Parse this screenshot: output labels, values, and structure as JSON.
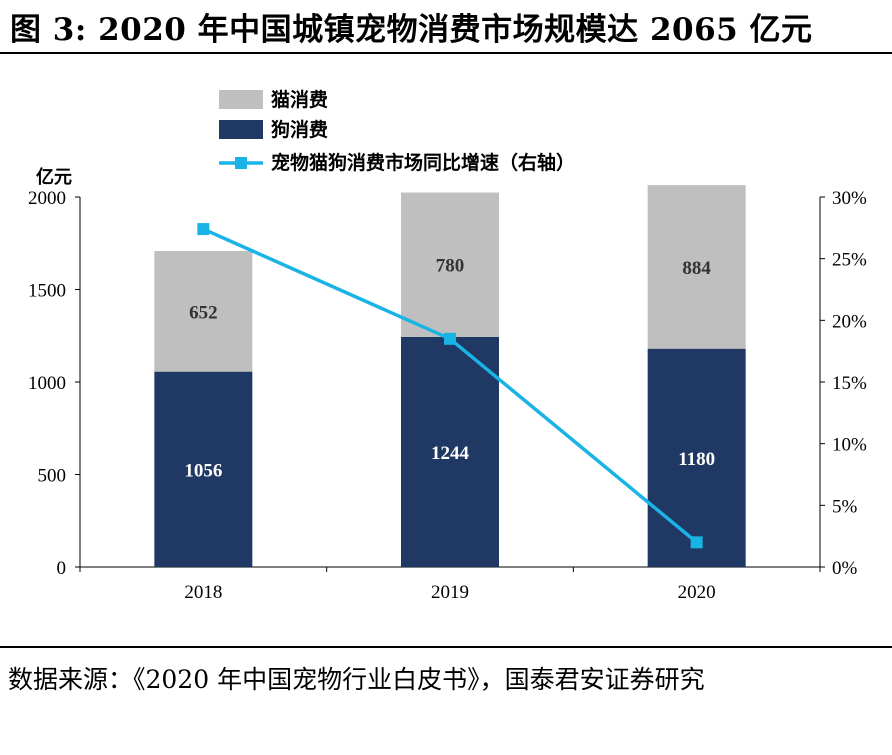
{
  "header": {
    "title": "图 3: 2020 年中国城镇宠物消费市场规模达 2065 亿元"
  },
  "footer": {
    "source": "数据来源：《2020 年中国宠物行业白皮书》，国泰君安证券研究"
  },
  "chart_data": {
    "type": "bar",
    "stacked": true,
    "categories": [
      "2018",
      "2019",
      "2020"
    ],
    "series": [
      {
        "name": "狗消费",
        "kind": "bar",
        "axis": "left",
        "color": "#1f3864",
        "values": [
          1056,
          1244,
          1180
        ]
      },
      {
        "name": "猫消费",
        "kind": "bar",
        "axis": "left",
        "color": "#bfbfbf",
        "values": [
          652,
          780,
          884
        ]
      },
      {
        "name": "宠物猫狗消费市场同比增速（右轴）",
        "kind": "line",
        "axis": "right",
        "color": "#19b3e6",
        "values": [
          27.4,
          18.5,
          2.0
        ]
      }
    ],
    "ylabel": "亿元",
    "ylim": [
      0,
      2000
    ],
    "yticks": [
      0,
      500,
      1000,
      1500,
      2000
    ],
    "y2lim": [
      0,
      30
    ],
    "y2ticks": [
      "0%",
      "5%",
      "10%",
      "15%",
      "20%",
      "25%",
      "30%"
    ],
    "legend": "top-left",
    "grid": false
  }
}
